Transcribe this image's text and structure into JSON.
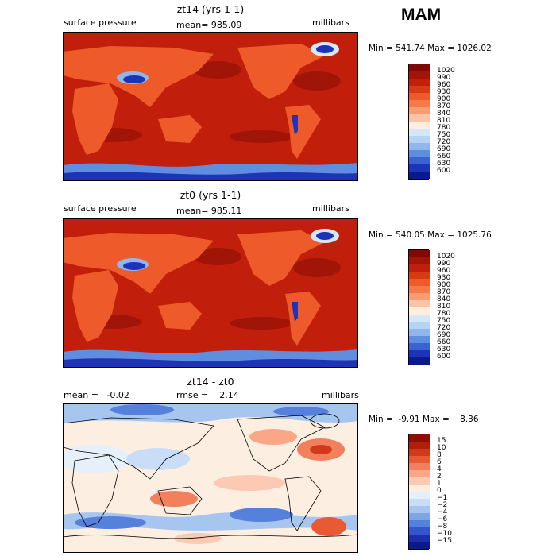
{
  "season": "MAM",
  "panels": [
    {
      "title": "zt14 (yrs 1-1)",
      "left_label": "surface pressure",
      "center_label": "mean= 985.09",
      "units": "millibars",
      "minmax": "Min = 541.74 Max = 1026.02",
      "colorbar": {
        "labels": [
          "1020",
          "990",
          "960",
          "930",
          "900",
          "870",
          "840",
          "810",
          "780",
          "750",
          "720",
          "690",
          "660",
          "630",
          "600"
        ],
        "colors": [
          "#7f0a05",
          "#a11408",
          "#c11f0c",
          "#d93a16",
          "#ee5a2a",
          "#f47a4a",
          "#f89c72",
          "#fcc4a6",
          "#fdeede",
          "#d6e8f8",
          "#b5d3f3",
          "#8fb7ec",
          "#5f8ee0",
          "#3a63d1",
          "#1d33b8",
          "#0a1a8c"
        ]
      }
    },
    {
      "title": "zt0 (yrs 1-1)",
      "left_label": "surface pressure",
      "center_label": "mean= 985.11",
      "units": "millibars",
      "minmax": "Min = 540.05 Max = 1025.76",
      "colorbar": {
        "labels": [
          "1020",
          "990",
          "960",
          "930",
          "900",
          "870",
          "840",
          "810",
          "780",
          "750",
          "720",
          "690",
          "660",
          "630",
          "600"
        ],
        "colors": [
          "#7f0a05",
          "#a11408",
          "#c11f0c",
          "#d93a16",
          "#ee5a2a",
          "#f47a4a",
          "#f89c72",
          "#fcc4a6",
          "#fdeede",
          "#d6e8f8",
          "#b5d3f3",
          "#8fb7ec",
          "#5f8ee0",
          "#3a63d1",
          "#1d33b8",
          "#0a1a8c"
        ]
      }
    },
    {
      "title": "zt14 - zt0",
      "left_label": "mean =   -0.02",
      "center_label": "rmse =    2.14",
      "units": "millibars",
      "minmax": "Min =  -9.91 Max =    8.36",
      "colorbar": {
        "labels": [
          "15",
          "10",
          "8",
          "6",
          "4",
          "2",
          "1",
          "0",
          "−1",
          "−2",
          "−4",
          "−6",
          "−8",
          "−10",
          "−15"
        ],
        "colors": [
          "#8a1005",
          "#b01f0c",
          "#d2381a",
          "#e85a34",
          "#f3805c",
          "#f9a787",
          "#fcc9b2",
          "#fdeee2",
          "#e6f0fb",
          "#c9def6",
          "#a7c6ef",
          "#7ea6e6",
          "#5580db",
          "#3356c9",
          "#1b2fae",
          "#0b1a86"
        ]
      }
    }
  ]
}
